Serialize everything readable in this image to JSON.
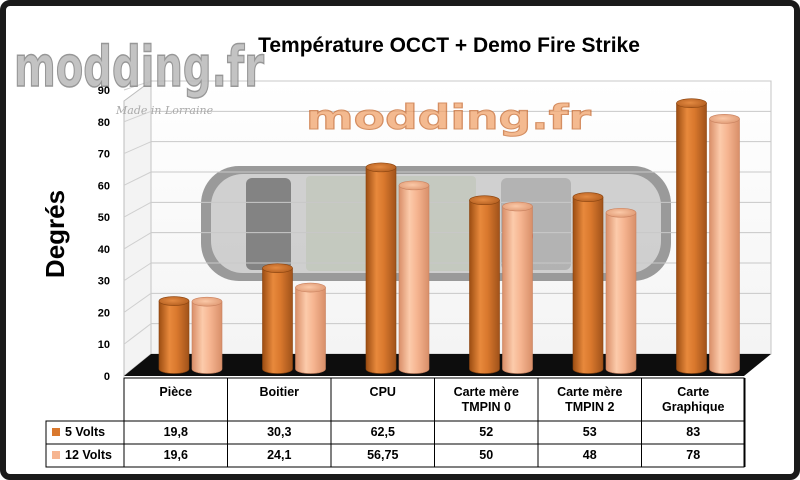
{
  "watermark": {
    "text": "modding.fr",
    "tagline": "Made in Lorraine"
  },
  "colors": {
    "series_5v": "#d9782d",
    "series_12v": "#f6b591",
    "floor": "#0d0d0d",
    "grid": "#c8c8c8"
  },
  "chart_data": {
    "type": "bar",
    "title": "Température OCCT + Demo Fire Strike",
    "ylabel": "Degrés",
    "xlabel": "",
    "ylim": [
      0,
      90
    ],
    "yticks": [
      0,
      10,
      20,
      30,
      40,
      50,
      60,
      70,
      80,
      90
    ],
    "grid": true,
    "legend": "table-left",
    "categories": [
      [
        "Pièce"
      ],
      [
        "Boitier"
      ],
      [
        "CPU"
      ],
      [
        "Carte mère",
        "TMPIN 0"
      ],
      [
        "Carte mère",
        "TMPIN 2"
      ],
      [
        "Carte",
        "Graphique"
      ]
    ],
    "series": [
      {
        "name": "5 Volts",
        "values": [
          19.8,
          30.3,
          62.5,
          52,
          53,
          83
        ],
        "labels": [
          "19,8",
          "30,3",
          "62,5",
          "52",
          "53",
          "83"
        ]
      },
      {
        "name": "12 Volts",
        "values": [
          19.6,
          24.1,
          56.75,
          50,
          48,
          78
        ],
        "labels": [
          "19,6",
          "24,1",
          "56,75",
          "50",
          "48",
          "78"
        ]
      }
    ]
  }
}
